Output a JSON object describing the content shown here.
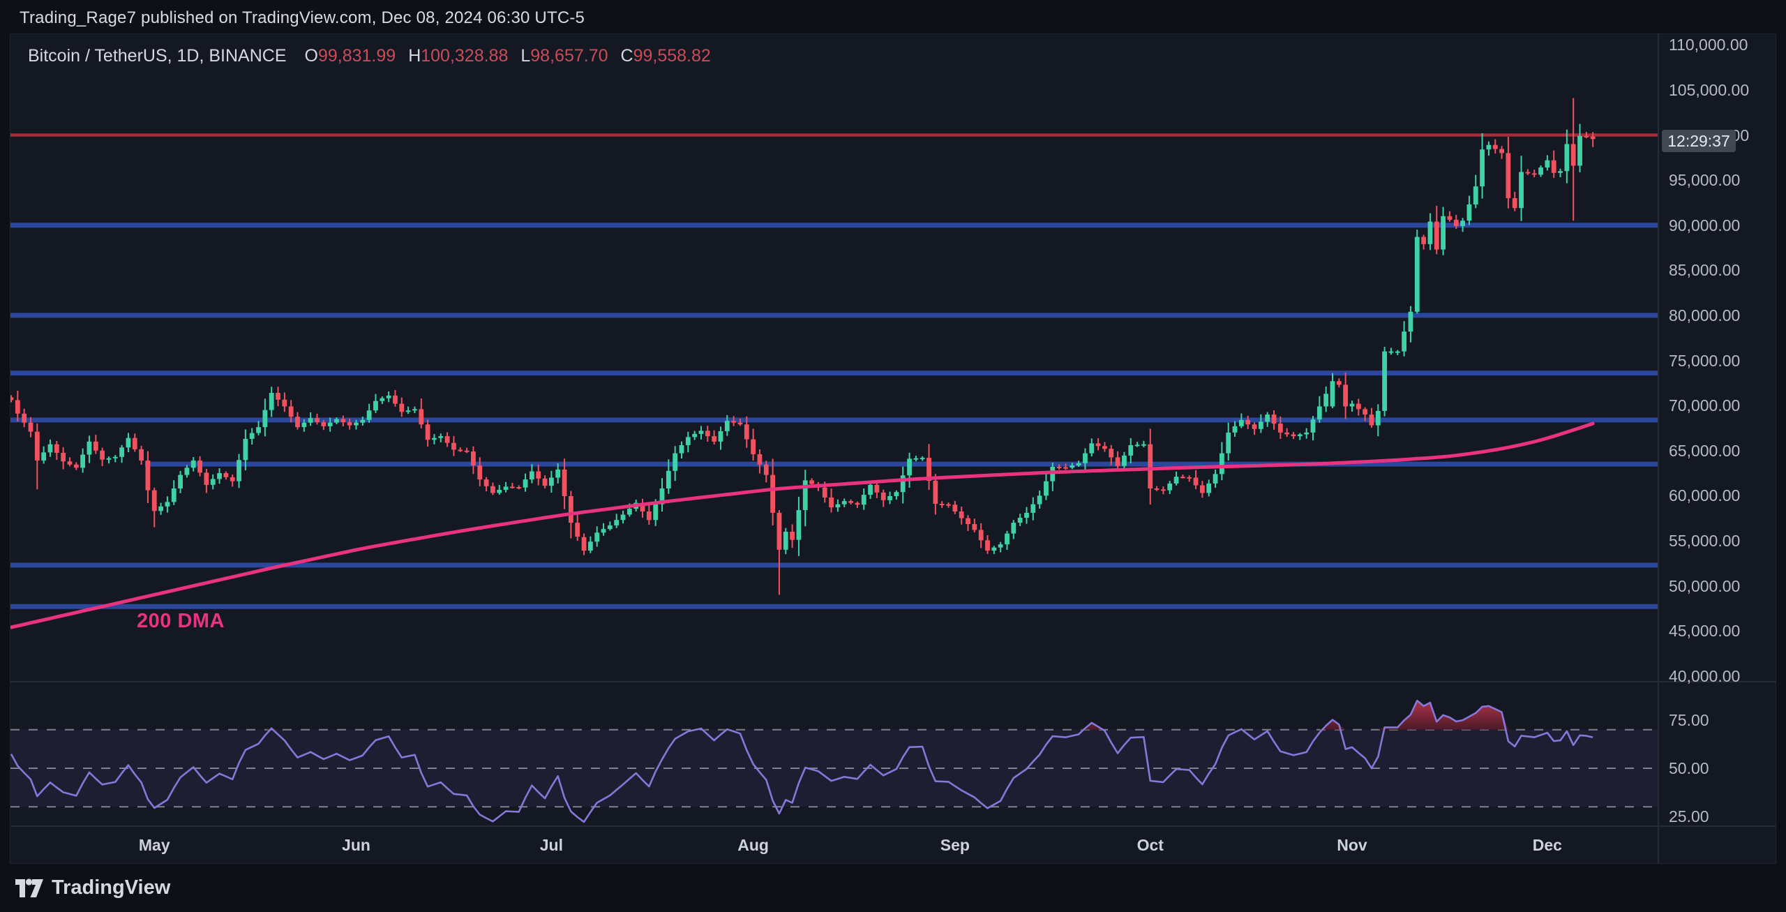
{
  "page": {
    "header": "Trading_Rage7 published on TradingView.com, Dec 08, 2024 06:30 UTC-5",
    "footer_brand": "TradingView"
  },
  "legend": {
    "title": "Bitcoin / TetherUS, 1D, BINANCE",
    "ohlc": [
      {
        "label": "O",
        "value": "99,831.99"
      },
      {
        "label": "H",
        "value": "100,328.88"
      },
      {
        "label": "L",
        "value": "98,657.70"
      },
      {
        "label": "C",
        "value": "99,558.82"
      }
    ]
  },
  "axis": {
    "countdown": "12:29:37",
    "price_ticks": [
      {
        "label": "110,000.00",
        "k": 110
      },
      {
        "label": "105,000.00",
        "k": 105
      },
      {
        "label": "100,000.00",
        "k": 100
      },
      {
        "label": "95,000.00",
        "k": 95
      },
      {
        "label": "90,000.00",
        "k": 90
      },
      {
        "label": "85,000.00",
        "k": 85
      },
      {
        "label": "80,000.00",
        "k": 80
      },
      {
        "label": "75,000.00",
        "k": 75
      },
      {
        "label": "70,000.00",
        "k": 70
      },
      {
        "label": "65,000.00",
        "k": 65
      },
      {
        "label": "60,000.00",
        "k": 60
      },
      {
        "label": "55,000.00",
        "k": 55
      },
      {
        "label": "50,000.00",
        "k": 50
      },
      {
        "label": "45,000.00",
        "k": 45
      },
      {
        "label": "40,000.00",
        "k": 40
      }
    ],
    "rsi_ticks": [
      {
        "label": "75.00",
        "v": 75
      },
      {
        "label": "50.00",
        "v": 50
      },
      {
        "label": "25.00",
        "v": 25
      }
    ],
    "months": [
      {
        "label": "May",
        "day": 22
      },
      {
        "label": "Jun",
        "day": 53
      },
      {
        "label": "Jul",
        "day": 83
      },
      {
        "label": "Aug",
        "day": 114
      },
      {
        "label": "Sep",
        "day": 145
      },
      {
        "label": "Oct",
        "day": 175
      },
      {
        "label": "Nov",
        "day": 206
      },
      {
        "label": "Dec",
        "day": 236
      }
    ]
  },
  "style": {
    "bg_outer": "#0d1017",
    "bg_panel": "#141822",
    "divider": "#262b37",
    "candle_up": "#3fd2a6",
    "candle_down": "#f2525f",
    "resistance_color": "#a32e3a",
    "support_color": "#2e4aa8",
    "ma_color": "#ea3380",
    "rsi_line": "#8677d9",
    "rsi_band_fill": "rgba(126,87,194,0.10)",
    "rsi_dash": "#9094a0",
    "rsi_ob_fill_top": "#bf3850",
    "rsi_ob_fill_bottom": "#4f1a28"
  },
  "chart_data": {
    "type": "candlestick",
    "title": "Bitcoin / TetherUS, 1D, BINANCE",
    "exchange": "BINANCE",
    "interval": "1D",
    "x_start_date": "2024-04-09",
    "x_end_date": "2024-12-08",
    "days": 244,
    "ylim": [
      40000,
      110000
    ],
    "y_tick_step": 5000,
    "last_bar_ohlc": {
      "open": 99831.99,
      "high": 100328.88,
      "low": 98657.7,
      "close": 99558.82
    },
    "close_anchors_k": [
      [
        0,
        70.6
      ],
      [
        1,
        69.1
      ],
      [
        3,
        67.1
      ],
      [
        4,
        63.9
      ],
      [
        6,
        65.7
      ],
      [
        8,
        63.8
      ],
      [
        10,
        63.1
      ],
      [
        12,
        66.0
      ],
      [
        14,
        64.0
      ],
      [
        16,
        64.3
      ],
      [
        18,
        66.4
      ],
      [
        20,
        63.9
      ],
      [
        21,
        60.6
      ],
      [
        22,
        58.3
      ],
      [
        24,
        59.3
      ],
      [
        26,
        62.3
      ],
      [
        28,
        63.9
      ],
      [
        30,
        61.2
      ],
      [
        32,
        62.5
      ],
      [
        34,
        61.6
      ],
      [
        36,
        66.3
      ],
      [
        38,
        67.6
      ],
      [
        40,
        71.4
      ],
      [
        42,
        69.9
      ],
      [
        44,
        67.6
      ],
      [
        46,
        68.6
      ],
      [
        48,
        67.7
      ],
      [
        50,
        68.5
      ],
      [
        52,
        67.8
      ],
      [
        54,
        68.4
      ],
      [
        56,
        70.5
      ],
      [
        58,
        71.1
      ],
      [
        60,
        69.3
      ],
      [
        62,
        69.6
      ],
      [
        64,
        66.2
      ],
      [
        66,
        66.6
      ],
      [
        68,
        65.1
      ],
      [
        70,
        64.9
      ],
      [
        72,
        61.8
      ],
      [
        74,
        60.3
      ],
      [
        76,
        61.0
      ],
      [
        78,
        60.9
      ],
      [
        80,
        62.7
      ],
      [
        82,
        61.1
      ],
      [
        84,
        62.9
      ],
      [
        86,
        57.0
      ],
      [
        88,
        53.9
      ],
      [
        90,
        55.9
      ],
      [
        92,
        56.7
      ],
      [
        94,
        57.9
      ],
      [
        96,
        59.2
      ],
      [
        98,
        57.3
      ],
      [
        100,
        60.8
      ],
      [
        102,
        64.7
      ],
      [
        104,
        66.5
      ],
      [
        106,
        67.2
      ],
      [
        108,
        66.0
      ],
      [
        110,
        68.3
      ],
      [
        112,
        67.9
      ],
      [
        114,
        64.6
      ],
      [
        116,
        62.3
      ],
      [
        117,
        58.1
      ],
      [
        118,
        54.0
      ],
      [
        119,
        56.0
      ],
      [
        120,
        55.1
      ],
      [
        122,
        61.7
      ],
      [
        124,
        60.9
      ],
      [
        126,
        58.7
      ],
      [
        128,
        59.4
      ],
      [
        130,
        59.0
      ],
      [
        132,
        61.2
      ],
      [
        134,
        59.5
      ],
      [
        136,
        60.4
      ],
      [
        138,
        64.1
      ],
      [
        140,
        64.2
      ],
      [
        142,
        59.1
      ],
      [
        144,
        59.0
      ],
      [
        146,
        57.5
      ],
      [
        148,
        56.2
      ],
      [
        150,
        53.9
      ],
      [
        152,
        54.6
      ],
      [
        154,
        57.0
      ],
      [
        156,
        58.1
      ],
      [
        158,
        60.0
      ],
      [
        160,
        63.2
      ],
      [
        162,
        63.1
      ],
      [
        164,
        63.6
      ],
      [
        166,
        65.8
      ],
      [
        168,
        65.2
      ],
      [
        170,
        63.3
      ],
      [
        172,
        65.6
      ],
      [
        174,
        65.7
      ],
      [
        175,
        60.8
      ],
      [
        177,
        60.6
      ],
      [
        179,
        62.1
      ],
      [
        181,
        62.0
      ],
      [
        183,
        60.3
      ],
      [
        185,
        62.4
      ],
      [
        187,
        67.0
      ],
      [
        189,
        68.4
      ],
      [
        191,
        67.4
      ],
      [
        193,
        69.0
      ],
      [
        195,
        67.0
      ],
      [
        197,
        66.6
      ],
      [
        199,
        67.0
      ],
      [
        201,
        69.9
      ],
      [
        203,
        72.7
      ],
      [
        204,
        72.3
      ],
      [
        205,
        69.9
      ],
      [
        206,
        70.2
      ],
      [
        208,
        69.0
      ],
      [
        209,
        67.8
      ],
      [
        210,
        69.4
      ],
      [
        211,
        76.0
      ],
      [
        213,
        76.0
      ],
      [
        215,
        80.4
      ],
      [
        216,
        88.7
      ],
      [
        217,
        87.9
      ],
      [
        218,
        90.4
      ],
      [
        219,
        87.3
      ],
      [
        220,
        91.0
      ],
      [
        221,
        90.6
      ],
      [
        222,
        89.9
      ],
      [
        223,
        90.5
      ],
      [
        224,
        92.3
      ],
      [
        225,
        94.3
      ],
      [
        226,
        98.4
      ],
      [
        227,
        98.9
      ],
      [
        229,
        98.0
      ],
      [
        230,
        93.0
      ],
      [
        231,
        91.9
      ],
      [
        232,
        95.9
      ],
      [
        234,
        95.6
      ],
      [
        235,
        96.4
      ],
      [
        236,
        97.2
      ],
      [
        237,
        95.8
      ],
      [
        238,
        96.0
      ],
      [
        239,
        99.0
      ],
      [
        240,
        96.6
      ],
      [
        241,
        99.9
      ],
      [
        242,
        99.8
      ],
      [
        243,
        99.56
      ]
    ],
    "special_candles_k": [
      {
        "d": 4,
        "o": 67.1,
        "h": 68.0,
        "l": 60.7,
        "c": 63.9
      },
      {
        "d": 22,
        "o": 60.6,
        "h": 60.9,
        "l": 56.5,
        "c": 58.3
      },
      {
        "d": 88,
        "o": 55.4,
        "h": 55.8,
        "l": 53.4,
        "c": 53.9
      },
      {
        "d": 118,
        "o": 58.1,
        "h": 58.4,
        "l": 49.0,
        "c": 54.0
      },
      {
        "d": 203,
        "o": 69.9,
        "h": 73.6,
        "l": 69.7,
        "c": 72.7
      },
      {
        "d": 211,
        "o": 69.4,
        "h": 76.5,
        "l": 68.8,
        "c": 76.0
      },
      {
        "d": 216,
        "o": 80.4,
        "h": 89.5,
        "l": 80.2,
        "c": 88.7
      },
      {
        "d": 240,
        "o": 99.0,
        "h": 104.1,
        "l": 90.5,
        "c": 96.6
      },
      {
        "d": 243,
        "o": 99.83,
        "h": 100.33,
        "l": 98.66,
        "c": 99.56
      }
    ],
    "ma200": {
      "label": "200 DMA",
      "anchors_k": [
        [
          0,
          45.4
        ],
        [
          14,
          47.7
        ],
        [
          28,
          50.0
        ],
        [
          42,
          52.3
        ],
        [
          55,
          54.3
        ],
        [
          70,
          56.2
        ],
        [
          85,
          57.9
        ],
        [
          100,
          59.3
        ],
        [
          118,
          60.8
        ],
        [
          140,
          61.9
        ],
        [
          160,
          62.6
        ],
        [
          180,
          63.1
        ],
        [
          200,
          63.5
        ],
        [
          212,
          63.9
        ],
        [
          222,
          64.4
        ],
        [
          230,
          65.3
        ],
        [
          236,
          66.3
        ],
        [
          243,
          68.0
        ]
      ]
    },
    "levels": {
      "resistance": [
        {
          "price_k": 100.0
        }
      ],
      "support": [
        {
          "price_k": 90.0
        },
        {
          "price_k": 80.0
        },
        {
          "price_k": 73.6
        },
        {
          "price_k": 68.4
        },
        {
          "price_k": 63.5,
          "from_day": 21
        },
        {
          "price_k": 52.3
        },
        {
          "price_k": 47.7
        }
      ]
    },
    "rsi": {
      "type": "line",
      "period": 14,
      "overbought": 70,
      "midline": 50,
      "oversold": 30,
      "axis_range_shown": [
        25,
        75
      ]
    }
  }
}
